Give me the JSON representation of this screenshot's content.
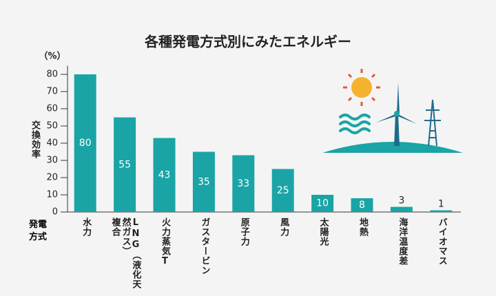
{
  "chart_data": {
    "type": "bar",
    "title": "各種発電方式別にみたエネルギー",
    "y_unit": "（%）",
    "y_label": "交換効率",
    "x_label": "発電方式",
    "categories": [
      "水力",
      "LNG（液化天然ガス）\n複合",
      "火力蒸気T",
      "ガスタービン",
      "原子力",
      "風力",
      "太陽光",
      "地熱",
      "海洋温度差",
      "バイオマス"
    ],
    "values": [
      80,
      55,
      43,
      35,
      33,
      25,
      10,
      8,
      3,
      1
    ],
    "color": "#1aa4a6",
    "ylim": [
      0,
      85
    ],
    "yticks": [
      0,
      10,
      20,
      30,
      40,
      50,
      60,
      70,
      80
    ]
  }
}
